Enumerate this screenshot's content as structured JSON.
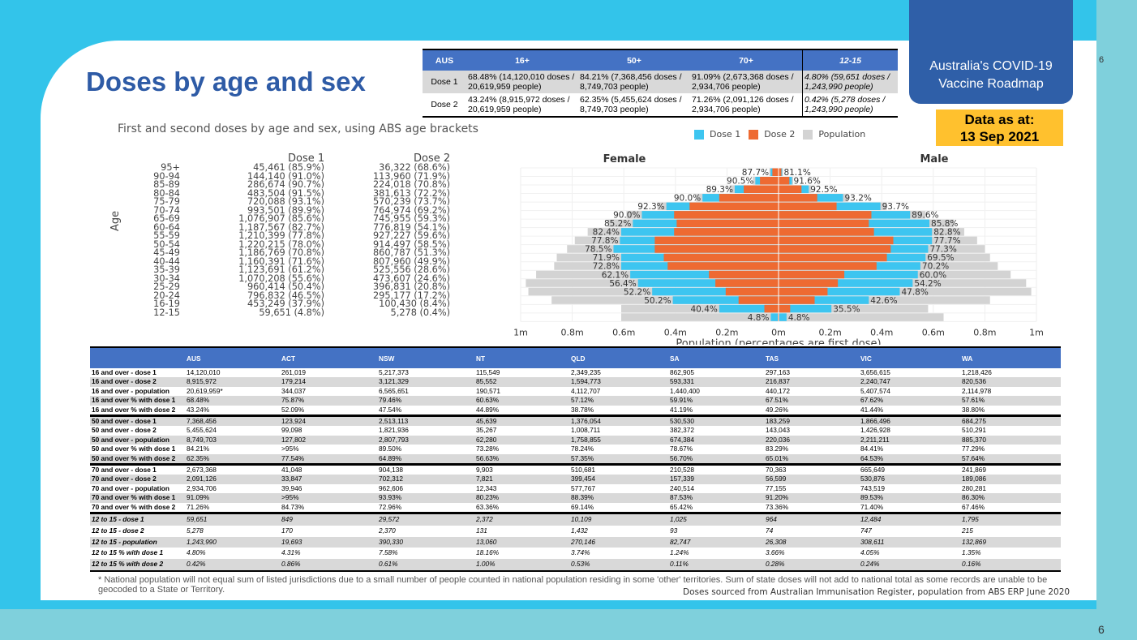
{
  "header": {
    "title": "Doses by age and sex",
    "roadmap_line1": "Australia's COVID-19",
    "roadmap_line2": "Vaccine Roadmap",
    "asat_line1": "Data as at:",
    "asat_line2": "13 Sep 2021",
    "page_small": "6",
    "page_number": "6"
  },
  "summary": {
    "headers": [
      "AUS",
      "16+",
      "50+",
      "70+",
      "12-15"
    ],
    "rows": [
      {
        "label": "Dose 1",
        "cells": [
          "68.48% (14,120,010 doses / 20,619,959 people)",
          "84.21% (7,368,456 doses / 8,749,703 people)",
          "91.09% (2,673,368 doses / 2,934,706 people)",
          "4.80% (59,651 doses / 1,243,990 people)"
        ]
      },
      {
        "label": "Dose 2",
        "cells": [
          "43.24% (8,915,972 doses / 20,619,959 people)",
          "62.35% (5,455,624 doses / 8,749,703 people)",
          "71.26% (2,091,126 doses / 2,934,706 people)",
          "0.42% (5,278 doses / 1,243,990 people)"
        ]
      }
    ]
  },
  "subtitle": "First and second doses by age and sex, using ABS age brackets",
  "legend": {
    "dose1": "Dose 1",
    "dose2": "Dose 2",
    "population": "Population",
    "colors": {
      "dose1": "#3dc5f0",
      "dose2": "#ee6a32",
      "population": "#d3d3d3"
    }
  },
  "dose_list": {
    "age_axis_label": "Age",
    "dose1_header": "Dose 1",
    "dose2_header": "Dose 2",
    "rows": [
      {
        "age": "95+",
        "d1": "45,461 (85.9%)",
        "d2": "36,322 (68.6%)"
      },
      {
        "age": "90-94",
        "d1": "144,140 (91.0%)",
        "d2": "113,960 (71.9%)"
      },
      {
        "age": "85-89",
        "d1": "286,674 (90.7%)",
        "d2": "224,018 (70.8%)"
      },
      {
        "age": "80-84",
        "d1": "483,504 (91.5%)",
        "d2": "381,613 (72.2%)"
      },
      {
        "age": "75-79",
        "d1": "720,088 (93.1%)",
        "d2": "570,239 (73.7%)"
      },
      {
        "age": "70-74",
        "d1": "993,501 (89.9%)",
        "d2": "764,974 (69.2%)"
      },
      {
        "age": "65-69",
        "d1": "1,076,907 (85.6%)",
        "d2": "745,955 (59.3%)"
      },
      {
        "age": "60-64",
        "d1": "1,187,567 (82.7%)",
        "d2": "776,819 (54.1%)"
      },
      {
        "age": "55-59",
        "d1": "1,210,399 (77.8%)",
        "d2": "927,227 (59.6%)"
      },
      {
        "age": "50-54",
        "d1": "1,220,215 (78.0%)",
        "d2": "914,497 (58.5%)"
      },
      {
        "age": "45-49",
        "d1": "1,186,769 (70.8%)",
        "d2": "860,787 (51.3%)"
      },
      {
        "age": "40-44",
        "d1": "1,160,391 (71.6%)",
        "d2": "807,960 (49.9%)"
      },
      {
        "age": "35-39",
        "d1": "1,123,691 (61.2%)",
        "d2": "525,556 (28.6%)"
      },
      {
        "age": "30-34",
        "d1": "1,070,208 (55.6%)",
        "d2": "473,607 (24.6%)"
      },
      {
        "age": "25-29",
        "d1": "960,414 (50.4%)",
        "d2": "396,831 (20.8%)"
      },
      {
        "age": "20-24",
        "d1": "796,832 (46.5%)",
        "d2": "295,177 (17.2%)"
      },
      {
        "age": "16-19",
        "d1": "453,249 (37.9%)",
        "d2": "100,430 (8.4%)"
      },
      {
        "age": "12-15",
        "d1": "59,651 (4.8%)",
        "d2": "5,278 (0.4%)"
      }
    ]
  },
  "chart_data": {
    "type": "bar",
    "orientation": "horizontal-pyramid",
    "title_left": "Female",
    "title_right": "Male",
    "xlabel": "Population (percentages are first dose)",
    "x_ticks": [
      "1m",
      "0.8m",
      "0.6m",
      "0.4m",
      "0.2m",
      "0m",
      "0.2m",
      "0.4m",
      "0.6m",
      "0.8m",
      "1m"
    ],
    "xlim": [
      -1000000,
      1000000
    ],
    "categories": [
      "95+",
      "90-94",
      "85-89",
      "80-84",
      "75-79",
      "70-74",
      "65-69",
      "60-64",
      "55-59",
      "50-54",
      "45-49",
      "40-44",
      "35-39",
      "30-34",
      "25-29",
      "20-24",
      "16-19",
      "12-15"
    ],
    "female": {
      "population": [
        36000,
        100000,
        190000,
        320000,
        470000,
        590000,
        660000,
        740000,
        790000,
        820000,
        860000,
        870000,
        940000,
        980000,
        970000,
        880000,
        610000,
        610000
      ],
      "dose1": [
        31000,
        90000,
        170000,
        295000,
        435000,
        530000,
        565000,
        610000,
        615000,
        640000,
        610000,
        610000,
        575000,
        545000,
        490000,
        410000,
        230000,
        30000
      ],
      "dose2": [
        24000,
        72000,
        135000,
        230000,
        345000,
        405000,
        395000,
        405000,
        480000,
        480000,
        445000,
        430000,
        270000,
        245000,
        205000,
        155000,
        55000,
        3000
      ],
      "labels": [
        "87.7%",
        "90.5%",
        "89.3%",
        "90.0%",
        "92.3%",
        "90.0%",
        "85.2%",
        "82.4%",
        "77.8%",
        "78.5%",
        "71.9%",
        "72.8%",
        "62.1%",
        "56.4%",
        "52.2%",
        "50.2%",
        "40.4%",
        "4.8%"
      ]
    },
    "male": {
      "population": [
        17000,
        57000,
        127000,
        270000,
        420000,
        570000,
        680000,
        720000,
        770000,
        800000,
        820000,
        850000,
        900000,
        960000,
        980000,
        820000,
        580000,
        640000
      ],
      "dose1": [
        14000,
        52000,
        117000,
        250000,
        395000,
        510000,
        585000,
        595000,
        595000,
        580000,
        570000,
        550000,
        540000,
        520000,
        470000,
        350000,
        205000,
        31000
      ],
      "dose2": [
        11000,
        42000,
        89000,
        150000,
        225000,
        360000,
        350000,
        370000,
        445000,
        435000,
        420000,
        380000,
        255000,
        230000,
        190000,
        140000,
        45000,
        2500
      ],
      "labels": [
        "81.1%",
        "91.6%",
        "92.5%",
        "93.2%",
        "93.7%",
        "89.6%",
        "85.8%",
        "82.8%",
        "77.7%",
        "77.3%",
        "69.5%",
        "70.2%",
        "60.0%",
        "54.2%",
        "47.8%",
        "42.6%",
        "35.5%",
        "4.8%"
      ]
    },
    "grid": true
  },
  "big_table": {
    "headers": [
      "",
      "AUS",
      "ACT",
      "NSW",
      "NT",
      "QLD",
      "SA",
      "TAS",
      "VIC",
      "WA"
    ],
    "rows": [
      [
        "16 and over - dose 1",
        "14,120,010",
        "261,019",
        "5,217,373",
        "115,549",
        "2,349,235",
        "862,905",
        "297,163",
        "3,656,615",
        "1,218,426"
      ],
      [
        "16 and over - dose 2",
        "8,915,972",
        "179,214",
        "3,121,329",
        "85,552",
        "1,594,773",
        "593,331",
        "216,837",
        "2,240,747",
        "820,536"
      ],
      [
        "16 and over - population",
        "20,619,959*",
        "344,037",
        "6,565,651",
        "190,571",
        "4,112,707",
        "1,440,400",
        "440,172",
        "5,407,574",
        "2,114,978"
      ],
      [
        "16 and over % with dose 1",
        "68.48%",
        "75.87%",
        "79.46%",
        "60.63%",
        "57.12%",
        "59.91%",
        "67.51%",
        "67.62%",
        "57.61%"
      ],
      [
        "16 and over % with dose 2",
        "43.24%",
        "52.09%",
        "47.54%",
        "44.89%",
        "38.78%",
        "41.19%",
        "49.26%",
        "41.44%",
        "38.80%"
      ],
      [
        "50 and over - dose 1",
        "7,368,456",
        "123,924",
        "2,513,113",
        "45,639",
        "1,376,054",
        "530,530",
        "183,259",
        "1,866,496",
        "684,275"
      ],
      [
        "50 and over - dose 2",
        "5,455,624",
        "99,098",
        "1,821,936",
        "35,267",
        "1,008,711",
        "382,372",
        "143,043",
        "1,426,928",
        "510,291"
      ],
      [
        "50 and over - population",
        "8,749,703",
        "127,802",
        "2,807,793",
        "62,280",
        "1,758,855",
        "674,384",
        "220,036",
        "2,211,211",
        "885,370"
      ],
      [
        "50 and over % with dose 1",
        "84.21%",
        ">95%",
        "89.50%",
        "73.28%",
        "78.24%",
        "78.67%",
        "83.29%",
        "84.41%",
        "77.29%"
      ],
      [
        "50 and over % with dose 2",
        "62.35%",
        "77.54%",
        "64.89%",
        "56.63%",
        "57.35%",
        "56.70%",
        "65.01%",
        "64.53%",
        "57.64%"
      ],
      [
        "70 and over - dose 1",
        "2,673,368",
        "41,048",
        "904,138",
        "9,903",
        "510,681",
        "210,528",
        "70,363",
        "665,649",
        "241,869"
      ],
      [
        "70 and over - dose 2",
        "2,091,126",
        "33,847",
        "702,312",
        "7,821",
        "399,454",
        "157,339",
        "56,599",
        "530,876",
        "189,086"
      ],
      [
        "70 and over - population",
        "2,934,706",
        "39,946",
        "962,606",
        "12,343",
        "577,767",
        "240,514",
        "77,155",
        "743,519",
        "280,281"
      ],
      [
        "70 and over % with dose 1",
        "91.09%",
        ">95%",
        "93.93%",
        "80.23%",
        "88.39%",
        "87.53%",
        "91.20%",
        "89.53%",
        "86.30%"
      ],
      [
        "70 and over % with dose 2",
        "71.26%",
        "84.73%",
        "72.96%",
        "63.36%",
        "69.14%",
        "65.42%",
        "73.36%",
        "71.40%",
        "67.46%"
      ],
      [
        "12 to 15 - dose 1",
        "59,651",
        "849",
        "29,572",
        "2,372",
        "10,109",
        "1,025",
        "964",
        "12,484",
        "1,795"
      ],
      [
        "12 to 15 - dose 2",
        "5,278",
        "170",
        "2,370",
        "131",
        "1,432",
        "93",
        "74",
        "747",
        "215"
      ],
      [
        "12 to 15 - population",
        "1,243,990",
        "19,693",
        "390,330",
        "13,060",
        "270,146",
        "82,747",
        "26,308",
        "308,611",
        "132,869"
      ],
      [
        "12 to 15 % with dose 1",
        "4.80%",
        "4.31%",
        "7.58%",
        "18.16%",
        "3.74%",
        "1.24%",
        "3.66%",
        "4.05%",
        "1.35%"
      ],
      [
        "12 to 15 % with dose 2",
        "0.42%",
        "0.86%",
        "0.61%",
        "1.00%",
        "0.53%",
        "0.11%",
        "0.28%",
        "0.24%",
        "0.16%"
      ]
    ]
  },
  "footnote": "*  National population will not equal sum of listed jurisdictions due to a small number of people counted in national population residing in some 'other' territories. Sum of state doses will not add to national total as some records are unable to be geocoded to a State or Territory.",
  "source": "Doses sourced from Australian Immunisation Register, population from ABS ERP June 2020"
}
